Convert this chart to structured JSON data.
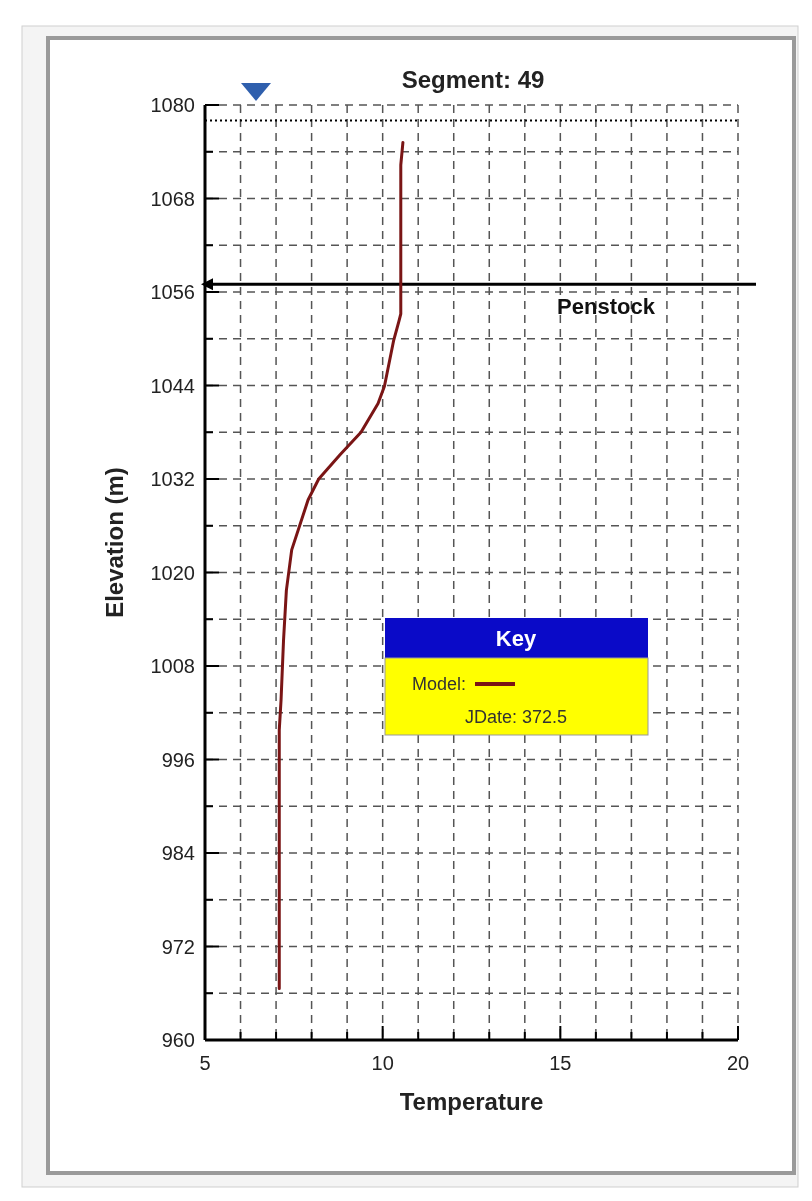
{
  "chart_data": {
    "type": "line",
    "subtitle": "Segment: 49",
    "xlabel": "Temperature",
    "ylabel": "Elevation (m)",
    "legend_title": "Key",
    "legend": "right",
    "grid": true,
    "line_style": "solid",
    "xlim": [
      5,
      20
    ],
    "xticks": [
      5,
      {
        "value": 6,
        "label": null
      },
      {
        "value": 7,
        "label": null
      },
      {
        "value": 8,
        "label": null
      },
      {
        "value": 9,
        "label": null
      },
      10,
      {
        "value": 11,
        "label": null
      },
      {
        "value": 12,
        "label": null
      },
      {
        "value": 13,
        "label": null
      },
      {
        "value": 14,
        "label": null
      },
      15,
      {
        "value": 16,
        "label": null
      },
      {
        "value": 17,
        "label": null
      },
      {
        "value": 18,
        "label": null
      },
      {
        "value": 19,
        "label": null
      },
      20
    ],
    "ylim": [
      960,
      1080
    ],
    "yticks": [
      960,
      {
        "value": 966,
        "label": null
      },
      972,
      {
        "value": 978,
        "label": null
      },
      984,
      {
        "value": 990,
        "label": null
      },
      996,
      {
        "value": 1002,
        "label": null
      },
      1008,
      {
        "value": 1014,
        "label": null
      },
      1020,
      {
        "value": 1026,
        "label": null
      },
      1032,
      {
        "value": 1038,
        "label": null
      },
      1044,
      {
        "value": 1050,
        "label": null
      },
      1056,
      {
        "value": 1062,
        "label": null
      },
      1068,
      {
        "value": 1074,
        "label": null
      },
      1080
    ],
    "series": [
      {
        "name": "Model:",
        "color": "#7a1515",
        "x": [
          10.57,
          10.51,
          10.51,
          10.46,
          10.31,
          10.05,
          9.87,
          9.39,
          8.8,
          8.2,
          7.9,
          7.44,
          7.29,
          7.21,
          7.14,
          7.09,
          7.09
        ],
        "values": [
          1075.2,
          1072.3,
          1053.2,
          1052.3,
          1049.8,
          1043.9,
          1041.7,
          1038.0,
          1035.1,
          1032.0,
          1029.3,
          1022.9,
          1017.7,
          1011.3,
          1003.6,
          999.8,
          966.6
        ]
      }
    ],
    "ref_lines": [
      {
        "axis": "y",
        "value": 1057,
        "label": "Penstock",
        "color": "#000000",
        "line_style": "solid"
      },
      {
        "axis": "y",
        "value": 1078,
        "label": null,
        "color": "#000000",
        "line_style": "dotted"
      }
    ],
    "annotations": [
      "JDate: 372.5"
    ]
  }
}
